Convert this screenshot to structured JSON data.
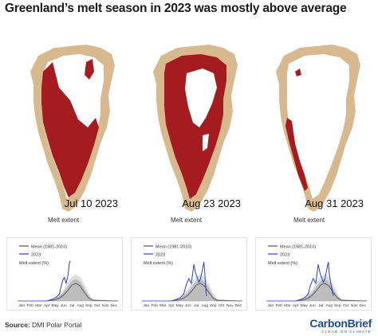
{
  "title": "Greenland’s melt season in 2023 was mostly above average",
  "colors": {
    "melt": "#a51c20",
    "land": "#d8b88e",
    "ice": "#ffffff",
    "mean_line": "#555555",
    "band_dark": "#bdbdbd",
    "band_light": "#dedede",
    "line_2023": "#2b3fcf",
    "brand": "#1b4f8c"
  },
  "maps": [
    {
      "date": "Jul 10 2023",
      "caption": "Melt extent",
      "melt_level": "interior-west-south"
    },
    {
      "date": "Aug 23 2023",
      "caption": "Melt extent",
      "melt_level": "most-of-ice-sheet"
    },
    {
      "date": "Aug 31 2023",
      "caption": "Melt extent",
      "melt_level": "west-margin"
    }
  ],
  "chart_data": [
    {
      "type": "line",
      "legend": [
        "Mean (1981-2010)",
        "2023"
      ],
      "ylabel": "Melt extent (%)",
      "categories": [
        "Jan",
        "Feb",
        "Mar",
        "Apr",
        "May",
        "Jun",
        "Jul",
        "Aug",
        "Sep",
        "Oct",
        "Nov",
        "Dec"
      ],
      "ylim": [
        0,
        100
      ],
      "mean_x": [
        0,
        3.5,
        4.5,
        5,
        5.5,
        6,
        6.5,
        7,
        7.5,
        8,
        8.5,
        9,
        12
      ],
      "mean_y": [
        0,
        0,
        2,
        5,
        10,
        18,
        27,
        30,
        25,
        14,
        5,
        1,
        0
      ],
      "band_upper": [
        0,
        1,
        5,
        12,
        20,
        32,
        42,
        45,
        40,
        28,
        12,
        3,
        0
      ],
      "series_2023_x": [
        0,
        3.5,
        4.2,
        4.6,
        5,
        5.2,
        5.4,
        5.6,
        5.8,
        6.0,
        6.2,
        6.3
      ],
      "series_2023_y": [
        0,
        0,
        3,
        6,
        12,
        25,
        35,
        40,
        30,
        42,
        65,
        68
      ]
    },
    {
      "type": "line",
      "legend": [
        "Mean (1981-2010)",
        "2023"
      ],
      "ylabel": "Melt extent (%)",
      "categories": [
        "Jan",
        "Feb",
        "Mar",
        "Apr",
        "May",
        "Jun",
        "Jul",
        "Aug",
        "Sep",
        "Oct",
        "Nov",
        "Dec"
      ],
      "ylim": [
        0,
        100
      ],
      "mean_x": [
        0,
        3.5,
        4.5,
        5,
        5.5,
        6,
        6.5,
        7,
        7.5,
        8,
        8.5,
        9,
        12
      ],
      "mean_y": [
        0,
        0,
        2,
        5,
        10,
        18,
        27,
        30,
        25,
        14,
        5,
        1,
        0
      ],
      "band_upper": [
        0,
        1,
        5,
        12,
        20,
        32,
        42,
        45,
        40,
        28,
        12,
        3,
        0
      ],
      "series_2023_x": [
        0,
        3.5,
        4.2,
        4.6,
        5,
        5.3,
        5.6,
        5.9,
        6.2,
        6.4,
        6.6,
        6.8,
        7.0,
        7.2,
        7.4,
        7.5,
        7.7
      ],
      "series_2023_y": [
        0,
        0,
        3,
        6,
        12,
        28,
        38,
        30,
        62,
        48,
        40,
        32,
        38,
        52,
        66,
        48,
        8
      ]
    },
    {
      "type": "line",
      "legend": [
        "Mean (1981-2010)",
        "2023"
      ],
      "ylabel": "Melt extent (%)",
      "categories": [
        "Jan",
        "Feb",
        "Mar",
        "Apr",
        "May",
        "Jun",
        "Jul",
        "Aug",
        "Sep",
        "Oct",
        "Nov",
        "Dec"
      ],
      "ylim": [
        0,
        100
      ],
      "mean_x": [
        0,
        3.5,
        4.5,
        5,
        5.5,
        6,
        6.5,
        7,
        7.5,
        8,
        8.5,
        9,
        12
      ],
      "mean_y": [
        0,
        0,
        2,
        5,
        10,
        18,
        27,
        30,
        25,
        14,
        5,
        1,
        0
      ],
      "band_upper": [
        0,
        1,
        5,
        12,
        20,
        32,
        42,
        45,
        40,
        28,
        12,
        3,
        0
      ],
      "series_2023_x": [
        0,
        3.5,
        4.2,
        4.6,
        5,
        5.3,
        5.6,
        5.9,
        6.2,
        6.4,
        6.6,
        6.8,
        7.0,
        7.2,
        7.4,
        7.5,
        7.7,
        7.9,
        8.0
      ],
      "series_2023_y": [
        0,
        0,
        3,
        6,
        12,
        28,
        38,
        30,
        62,
        48,
        40,
        32,
        38,
        52,
        66,
        48,
        30,
        15,
        9
      ]
    }
  ],
  "footer": {
    "source_label": "Source:",
    "source_text": "DMI Polar Portal",
    "brand_name": "CarbonBrief",
    "brand_tagline": "CLEAR ON CLIMATE"
  }
}
